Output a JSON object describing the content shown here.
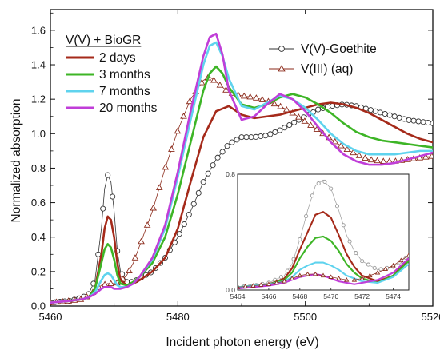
{
  "chart_data": [
    {
      "type": "line",
      "xlabel": "Incident photon energy (eV)",
      "ylabel": "Normalized absorption",
      "xlim": [
        5460,
        5520
      ],
      "ylim": [
        0,
        1.72
      ],
      "xticks": [
        5460,
        5480,
        5500,
        5520
      ],
      "yticks": [
        0.0,
        0.2,
        0.4,
        0.6,
        0.8,
        1.0,
        1.2,
        1.4,
        1.6
      ],
      "grid": false,
      "legend_title": "V(V) + BioGR",
      "legend_placement": "top-left",
      "legend2_placement": "top-right",
      "series": [
        {
          "name": "2 days",
          "color": "#a52a1a",
          "style": "line",
          "x": [
            5460,
            5463,
            5465,
            5466,
            5467,
            5468,
            5468.5,
            5469,
            5469.5,
            5470,
            5470.5,
            5471,
            5472,
            5473,
            5474,
            5476,
            5478,
            5480,
            5482,
            5484,
            5486,
            5488,
            5490,
            5492,
            5494,
            5496,
            5498,
            5500,
            5502,
            5504,
            5506,
            5508,
            5510,
            5512,
            5514,
            5516,
            5518,
            5520
          ],
          "y": [
            0.02,
            0.03,
            0.04,
            0.05,
            0.1,
            0.3,
            0.45,
            0.52,
            0.5,
            0.4,
            0.25,
            0.15,
            0.12,
            0.13,
            0.15,
            0.2,
            0.28,
            0.45,
            0.72,
            0.98,
            1.13,
            1.16,
            1.11,
            1.09,
            1.1,
            1.11,
            1.13,
            1.15,
            1.17,
            1.18,
            1.17,
            1.15,
            1.12,
            1.08,
            1.04,
            1.0,
            0.97,
            0.95
          ]
        },
        {
          "name": "3 months",
          "color": "#3db526",
          "style": "line",
          "x": [
            5460,
            5463,
            5465,
            5466,
            5467,
            5468,
            5468.5,
            5469,
            5469.5,
            5470,
            5470.5,
            5471,
            5472,
            5473,
            5474,
            5476,
            5478,
            5480,
            5482,
            5484,
            5485,
            5486,
            5487,
            5488,
            5490,
            5492,
            5494,
            5496,
            5498,
            5500,
            5502,
            5504,
            5506,
            5508,
            5510,
            5512,
            5514,
            5516,
            5518,
            5520
          ],
          "y": [
            0.02,
            0.03,
            0.04,
            0.05,
            0.1,
            0.25,
            0.33,
            0.36,
            0.34,
            0.27,
            0.18,
            0.13,
            0.12,
            0.14,
            0.17,
            0.25,
            0.4,
            0.65,
            0.95,
            1.25,
            1.35,
            1.39,
            1.35,
            1.27,
            1.17,
            1.15,
            1.17,
            1.21,
            1.23,
            1.21,
            1.17,
            1.12,
            1.06,
            1.01,
            0.98,
            0.96,
            0.95,
            0.94,
            0.93,
            0.92
          ]
        },
        {
          "name": "7 months",
          "color": "#5fd3ee",
          "style": "line",
          "x": [
            5460,
            5463,
            5465,
            5466,
            5467,
            5468,
            5468.5,
            5469,
            5469.5,
            5470,
            5470.5,
            5471,
            5472,
            5473,
            5474,
            5476,
            5478,
            5480,
            5482,
            5484,
            5485,
            5486,
            5487,
            5488,
            5490,
            5492,
            5494,
            5496,
            5498,
            5500,
            5502,
            5504,
            5506,
            5508,
            5510,
            5512,
            5514,
            5516,
            5518,
            5520
          ],
          "y": [
            0.02,
            0.03,
            0.04,
            0.05,
            0.08,
            0.15,
            0.18,
            0.19,
            0.18,
            0.15,
            0.12,
            0.11,
            0.11,
            0.13,
            0.17,
            0.27,
            0.45,
            0.75,
            1.08,
            1.4,
            1.51,
            1.53,
            1.45,
            1.32,
            1.16,
            1.14,
            1.18,
            1.22,
            1.2,
            1.15,
            1.08,
            1.0,
            0.94,
            0.9,
            0.88,
            0.88,
            0.88,
            0.89,
            0.9,
            0.9
          ]
        },
        {
          "name": "20 months",
          "color": "#c03ed8",
          "style": "line",
          "x": [
            5460,
            5463,
            5465,
            5466,
            5467,
            5468,
            5468.5,
            5469,
            5469.5,
            5470,
            5470.5,
            5471,
            5472,
            5473,
            5474,
            5476,
            5478,
            5480,
            5482,
            5484,
            5485,
            5486,
            5487,
            5488,
            5490,
            5492,
            5494,
            5496,
            5498,
            5500,
            5502,
            5504,
            5506,
            5508,
            5510,
            5512,
            5514,
            5516,
            5518,
            5520
          ],
          "y": [
            0.02,
            0.03,
            0.04,
            0.05,
            0.07,
            0.1,
            0.11,
            0.11,
            0.11,
            0.1,
            0.1,
            0.1,
            0.11,
            0.13,
            0.17,
            0.28,
            0.47,
            0.78,
            1.13,
            1.45,
            1.56,
            1.58,
            1.46,
            1.25,
            1.08,
            1.1,
            1.17,
            1.23,
            1.2,
            1.13,
            1.04,
            0.95,
            0.88,
            0.84,
            0.82,
            0.82,
            0.83,
            0.85,
            0.87,
            0.89
          ]
        },
        {
          "name": "V(V)-Goethite",
          "color": "#333333",
          "style": "open-circle",
          "x": [
            5460,
            5463,
            5465,
            5466,
            5467,
            5468,
            5468.5,
            5469,
            5469.5,
            5470,
            5470.5,
            5471,
            5472,
            5473,
            5474,
            5476,
            5478,
            5480,
            5482,
            5484,
            5486,
            5488,
            5490,
            5492,
            5494,
            5496,
            5498,
            5500,
            5502,
            5504,
            5506,
            5508,
            5510,
            5512,
            5514,
            5516,
            5518,
            5520
          ],
          "y": [
            0.02,
            0.03,
            0.05,
            0.07,
            0.15,
            0.45,
            0.68,
            0.76,
            0.72,
            0.55,
            0.32,
            0.2,
            0.14,
            0.14,
            0.16,
            0.2,
            0.28,
            0.4,
            0.55,
            0.72,
            0.85,
            0.94,
            0.98,
            0.98,
            0.99,
            1.02,
            1.06,
            1.1,
            1.14,
            1.16,
            1.17,
            1.16,
            1.14,
            1.12,
            1.1,
            1.08,
            1.07,
            1.06
          ]
        },
        {
          "name": "V(III) (aq)",
          "color": "#8b2a1a",
          "style": "open-triangle",
          "x": [
            5460,
            5463,
            5465,
            5466,
            5467,
            5468,
            5469,
            5470,
            5471,
            5472,
            5473,
            5474,
            5476,
            5478,
            5480,
            5482,
            5484,
            5485,
            5486,
            5488,
            5490,
            5492,
            5494,
            5496,
            5498,
            5500,
            5502,
            5504,
            5506,
            5508,
            5510,
            5512,
            5514,
            5516,
            5518,
            5520
          ],
          "y": [
            0.02,
            0.03,
            0.04,
            0.06,
            0.09,
            0.12,
            0.13,
            0.13,
            0.14,
            0.18,
            0.25,
            0.35,
            0.55,
            0.8,
            1.02,
            1.2,
            1.31,
            1.33,
            1.3,
            1.24,
            1.22,
            1.21,
            1.19,
            1.16,
            1.12,
            1.07,
            1.02,
            0.97,
            0.92,
            0.88,
            0.85,
            0.84,
            0.84,
            0.85,
            0.86,
            0.87
          ]
        }
      ]
    },
    {
      "type": "line",
      "role": "inset",
      "xlim": [
        5464,
        5475
      ],
      "ylim": [
        0,
        0.8
      ],
      "xticks": [
        5464,
        5466,
        5468,
        5470,
        5472,
        5474
      ],
      "yticks": [
        0.0,
        0.8
      ],
      "series": [
        {
          "name": "V(V)-Goethite",
          "color": "#999999",
          "style": "open-circle",
          "x": [
            5464,
            5465,
            5466,
            5467,
            5467.5,
            5468,
            5468.5,
            5469,
            5469.5,
            5470,
            5470.5,
            5471,
            5471.5,
            5472,
            5473,
            5474,
            5475
          ],
          "y": [
            0.02,
            0.03,
            0.05,
            0.1,
            0.18,
            0.35,
            0.55,
            0.72,
            0.76,
            0.7,
            0.55,
            0.38,
            0.27,
            0.2,
            0.14,
            0.16,
            0.24
          ]
        },
        {
          "name": "2 days",
          "color": "#a52a1a",
          "style": "line",
          "x": [
            5464,
            5465,
            5466,
            5467,
            5467.5,
            5468,
            5468.5,
            5469,
            5469.5,
            5470,
            5470.5,
            5471,
            5471.5,
            5472,
            5473,
            5474,
            5475
          ],
          "y": [
            0.02,
            0.03,
            0.04,
            0.08,
            0.15,
            0.28,
            0.4,
            0.52,
            0.54,
            0.5,
            0.38,
            0.25,
            0.16,
            0.1,
            0.06,
            0.1,
            0.22
          ]
        },
        {
          "name": "3 months",
          "color": "#3db526",
          "style": "line",
          "x": [
            5464,
            5465,
            5466,
            5467,
            5467.5,
            5468,
            5468.5,
            5469,
            5469.5,
            5470,
            5470.5,
            5471,
            5471.5,
            5472,
            5473,
            5474,
            5475
          ],
          "y": [
            0.02,
            0.03,
            0.04,
            0.07,
            0.12,
            0.22,
            0.3,
            0.36,
            0.37,
            0.34,
            0.27,
            0.18,
            0.12,
            0.08,
            0.05,
            0.1,
            0.2
          ]
        },
        {
          "name": "7 months",
          "color": "#5fd3ee",
          "style": "line",
          "x": [
            5464,
            5465,
            5466,
            5467,
            5467.5,
            5468,
            5468.5,
            5469,
            5469.5,
            5470,
            5470.5,
            5471,
            5471.5,
            5472,
            5473,
            5474,
            5475
          ],
          "y": [
            0.02,
            0.03,
            0.04,
            0.06,
            0.09,
            0.14,
            0.17,
            0.19,
            0.19,
            0.17,
            0.14,
            0.1,
            0.08,
            0.06,
            0.05,
            0.09,
            0.18
          ]
        },
        {
          "name": "20 months",
          "color": "#c03ed8",
          "style": "line",
          "x": [
            5464,
            5465,
            5466,
            5467,
            5467.5,
            5468,
            5468.5,
            5469,
            5469.5,
            5470,
            5470.5,
            5471,
            5471.5,
            5472,
            5473,
            5474,
            5475
          ],
          "y": [
            0.01,
            0.02,
            0.03,
            0.05,
            0.07,
            0.09,
            0.1,
            0.11,
            0.1,
            0.08,
            0.06,
            0.05,
            0.04,
            0.05,
            0.07,
            0.12,
            0.22
          ]
        },
        {
          "name": "V(III) (aq)",
          "color": "#8b2a1a",
          "style": "open-triangle",
          "x": [
            5464,
            5465,
            5466,
            5467,
            5467.5,
            5468,
            5468.5,
            5469,
            5469.5,
            5470,
            5470.5,
            5471,
            5471.5,
            5472,
            5473,
            5474,
            5475
          ],
          "y": [
            0.02,
            0.03,
            0.04,
            0.06,
            0.08,
            0.1,
            0.11,
            0.11,
            0.1,
            0.09,
            0.08,
            0.07,
            0.07,
            0.08,
            0.12,
            0.17,
            0.24
          ]
        }
      ]
    }
  ]
}
